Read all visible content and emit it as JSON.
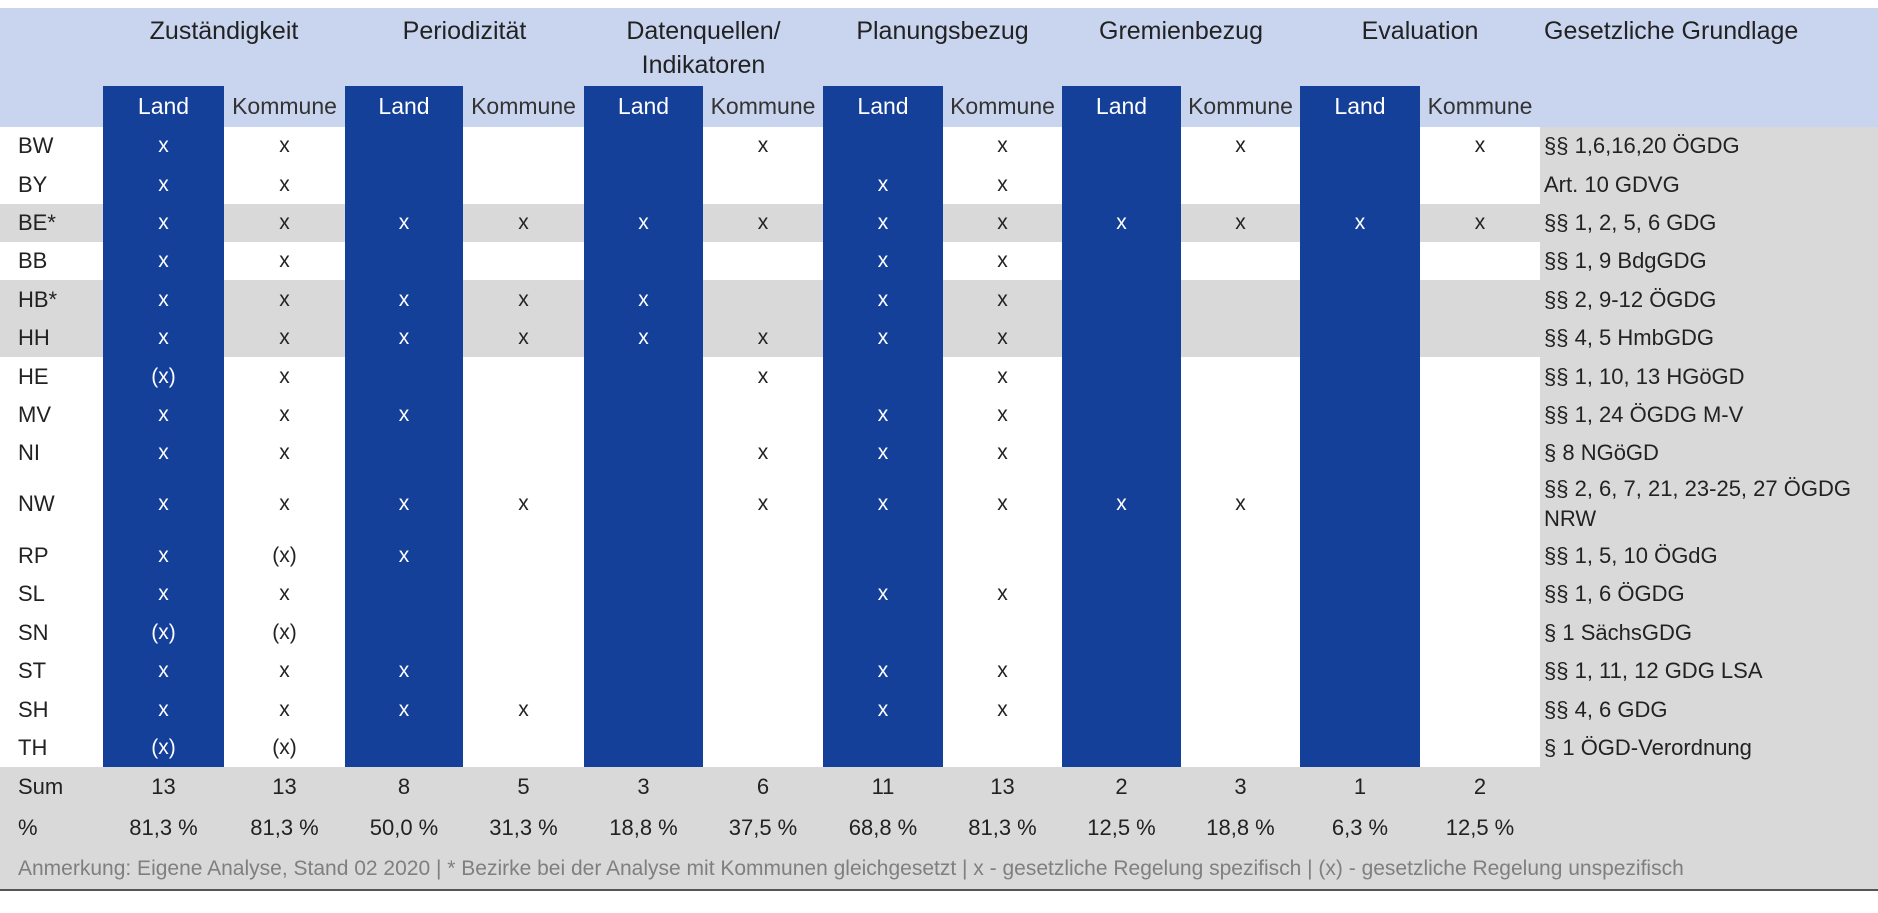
{
  "header": {
    "groups": [
      "Zuständigkeit",
      "Periodizität",
      "Datenquellen/ Indikatoren",
      "Planungsbezug",
      "Gremienbezug",
      "Evaluation"
    ],
    "legal_title": "Gesetzliche Grundlage",
    "sub_land": "Land",
    "sub_kommune": "Kommune"
  },
  "rows": [
    {
      "state": "BW",
      "cells": [
        "x",
        "x",
        "",
        "",
        "",
        "x",
        "",
        "x",
        "",
        "x",
        "",
        "x"
      ],
      "legal": "§§ 1,6,16,20 ÖGDG"
    },
    {
      "state": "BY",
      "cells": [
        "x",
        "x",
        "",
        "",
        "",
        "",
        "x",
        "x",
        "",
        "",
        "",
        ""
      ],
      "legal": "Art. 10 GDVG"
    },
    {
      "state": "BE*",
      "cells": [
        "x",
        "x",
        "x",
        "x",
        "x",
        "x",
        "x",
        "x",
        "x",
        "x",
        "x",
        "x"
      ],
      "legal": "§§ 1, 2, 5, 6 GDG"
    },
    {
      "state": "BB",
      "cells": [
        "x",
        "x",
        "",
        "",
        "",
        "",
        "x",
        "x",
        "",
        "",
        "",
        ""
      ],
      "legal": "§§ 1, 9 BdgGDG"
    },
    {
      "state": "HB*",
      "cells": [
        "x",
        "x",
        "x",
        "x",
        "x",
        "",
        "x",
        "x",
        "",
        "",
        "",
        ""
      ],
      "legal": "§§ 2, 9-12  ÖGDG"
    },
    {
      "state": "HH",
      "cells": [
        "x",
        "x",
        "x",
        "x",
        "x",
        "x",
        "x",
        "x",
        "",
        "",
        "",
        ""
      ],
      "legal": "§§ 4, 5 HmbGDG"
    },
    {
      "state": "HE",
      "cells": [
        "(x)",
        "x",
        "",
        "",
        "",
        "x",
        "",
        "x",
        "",
        "",
        "",
        ""
      ],
      "legal": "§§ 1, 10, 13 HGöGD"
    },
    {
      "state": "MV",
      "cells": [
        "x",
        "x",
        "x",
        "",
        "",
        "",
        "x",
        "x",
        "",
        "",
        "",
        ""
      ],
      "legal": "§§ 1, 24 ÖGDG M-V"
    },
    {
      "state": "NI",
      "cells": [
        "x",
        "x",
        "",
        "",
        "",
        "x",
        "x",
        "x",
        "",
        "",
        "",
        ""
      ],
      "legal": "§ 8 NGöGD"
    },
    {
      "state": "NW",
      "cells": [
        "x",
        "x",
        "x",
        "x",
        "",
        "x",
        "x",
        "x",
        "x",
        "x",
        "",
        ""
      ],
      "legal": "§§ 2, 6, 7, 21, 23-25, 27 ÖGDG NRW"
    },
    {
      "state": "RP",
      "cells": [
        "x",
        "(x)",
        "x",
        "",
        "",
        "",
        "",
        "",
        "",
        "",
        "",
        ""
      ],
      "legal": "§§ 1, 5, 10 ÖGdG"
    },
    {
      "state": "SL",
      "cells": [
        "x",
        "x",
        "",
        "",
        "",
        "",
        "x",
        "x",
        "",
        "",
        "",
        ""
      ],
      "legal": "§§ 1, 6 ÖGDG"
    },
    {
      "state": "SN",
      "cells": [
        "(x)",
        "(x)",
        "",
        "",
        "",
        "",
        "",
        "",
        "",
        "",
        "",
        ""
      ],
      "legal": "§ 1 SächsGDG"
    },
    {
      "state": "ST",
      "cells": [
        "x",
        "x",
        "x",
        "",
        "",
        "",
        "x",
        "x",
        "",
        "",
        "",
        ""
      ],
      "legal": "§§ 1, 11, 12 GDG LSA"
    },
    {
      "state": "SH",
      "cells": [
        "x",
        "x",
        "x",
        "x",
        "",
        "",
        "x",
        "x",
        "",
        "",
        "",
        ""
      ],
      "legal": "§§ 4, 6 GDG"
    },
    {
      "state": "TH",
      "cells": [
        "(x)",
        "(x)",
        "",
        "",
        "",
        "",
        "",
        "",
        "",
        "",
        "",
        ""
      ],
      "legal": "§ 1 ÖGD-Verordnung"
    }
  ],
  "sum": {
    "label": "Sum",
    "values": [
      "13",
      "13",
      "8",
      "5",
      "3",
      "6",
      "11",
      "13",
      "2",
      "3",
      "1",
      "2"
    ]
  },
  "percent": {
    "label": "%",
    "values": [
      "81,3 %",
      "81,3 %",
      "50,0 %",
      "31,3 %",
      "18,8 %",
      "37,5 %",
      "68,8 %",
      "81,3 %",
      "12,5 %",
      "18,8 %",
      "6,3 %",
      "12,5 %"
    ]
  },
  "note": "Anmerkung: Eigene Analyse, Stand 02 2020 | * Bezirke bei der Analyse mit Kommunen gleichgesetzt |  x - gesetzliche Regelung spezifisch | (x) - gesetzliche Regelung unspezifisch",
  "row_shading": [
    "white",
    "white",
    "gray",
    "white",
    "gray",
    "gray",
    "white",
    "white",
    "white",
    "white",
    "white",
    "white",
    "white",
    "white",
    "white",
    "white"
  ],
  "colors": {
    "blue": "#14409a",
    "header_light": "#c9d5ef",
    "gray": "#d9d9d9"
  }
}
